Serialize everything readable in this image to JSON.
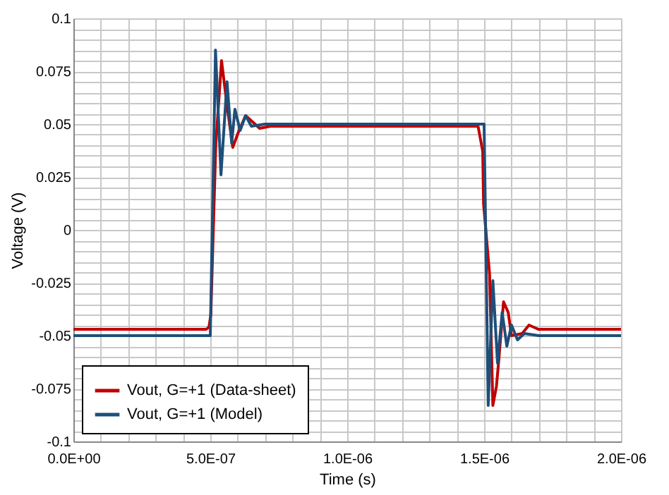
{
  "chart_data": {
    "type": "line",
    "xlabel": "Time  (s)",
    "ylabel": "Voltage  (V)",
    "xlim": [
      0,
      2e-06
    ],
    "ylim": [
      -0.1,
      0.1
    ],
    "xticks": [
      {
        "value": 0,
        "label": "0.0E+00"
      },
      {
        "value": 1e-07,
        "label": null
      },
      {
        "value": 2e-07,
        "label": null
      },
      {
        "value": 3e-07,
        "label": null
      },
      {
        "value": 4e-07,
        "label": null
      },
      {
        "value": 5e-07,
        "label": "5.0E-07"
      },
      {
        "value": 6e-07,
        "label": null
      },
      {
        "value": 7e-07,
        "label": null
      },
      {
        "value": 8e-07,
        "label": null
      },
      {
        "value": 9e-07,
        "label": null
      },
      {
        "value": 1e-06,
        "label": "1.0E-06"
      },
      {
        "value": 1.1e-06,
        "label": null
      },
      {
        "value": 1.2e-06,
        "label": null
      },
      {
        "value": 1.3e-06,
        "label": null
      },
      {
        "value": 1.4e-06,
        "label": null
      },
      {
        "value": 1.5e-06,
        "label": "1.5E-06"
      },
      {
        "value": 1.6e-06,
        "label": null
      },
      {
        "value": 1.7e-06,
        "label": null
      },
      {
        "value": 1.8e-06,
        "label": null
      },
      {
        "value": 1.9e-06,
        "label": null
      },
      {
        "value": 2e-06,
        "label": "2.0E-06"
      }
    ],
    "yticks": [
      -0.1,
      {
        "value": -0.095,
        "label": null
      },
      {
        "value": -0.09,
        "label": null
      },
      {
        "value": -0.085,
        "label": null
      },
      {
        "value": -0.08,
        "label": null
      },
      -0.075,
      {
        "value": -0.07,
        "label": null
      },
      {
        "value": -0.065,
        "label": null
      },
      {
        "value": -0.06,
        "label": null
      },
      {
        "value": -0.055,
        "label": null
      },
      -0.05,
      {
        "value": -0.045,
        "label": null
      },
      {
        "value": -0.04,
        "label": null
      },
      {
        "value": -0.035,
        "label": null
      },
      {
        "value": -0.03,
        "label": null
      },
      -0.025,
      {
        "value": -0.02,
        "label": null
      },
      {
        "value": -0.015,
        "label": null
      },
      {
        "value": -0.01,
        "label": null
      },
      {
        "value": -0.005,
        "label": null
      },
      0,
      {
        "value": 0.005,
        "label": null
      },
      {
        "value": 0.01,
        "label": null
      },
      {
        "value": 0.015,
        "label": null
      },
      {
        "value": 0.02,
        "label": null
      },
      0.025,
      {
        "value": 0.03,
        "label": null
      },
      {
        "value": 0.035,
        "label": null
      },
      {
        "value": 0.04,
        "label": null
      },
      {
        "value": 0.045,
        "label": null
      },
      0.05,
      {
        "value": 0.055,
        "label": null
      },
      {
        "value": 0.06,
        "label": null
      },
      {
        "value": 0.065,
        "label": null
      },
      {
        "value": 0.07,
        "label": null
      },
      0.075,
      {
        "value": 0.08,
        "label": null
      },
      {
        "value": 0.085,
        "label": null
      },
      {
        "value": 0.09,
        "label": null
      },
      {
        "value": 0.095,
        "label": null
      },
      0.1
    ],
    "grid": true,
    "legend": "bottom left",
    "marker": "none",
    "line_style": "solid",
    "series": [
      {
        "name": "Vout, G=+1 (Data-sheet)",
        "color": "#c00000",
        "x": [
          0,
          4.85e-07,
          4.95e-07,
          5.02e-07,
          5.2e-07,
          5.41e-07,
          5.6e-07,
          5.82e-07,
          6.05e-07,
          6.29e-07,
          6.55e-07,
          6.8e-07,
          7.2e-07,
          1e-06,
          1.478e-06,
          1.495e-06,
          1.498e-06,
          1.52e-06,
          1.532e-06,
          1.545e-06,
          1.554e-06,
          1.571e-06,
          1.588e-06,
          1.6e-06,
          1.639e-06,
          1.664e-06,
          1.698e-06,
          2e-06
        ],
        "values": [
          -0.047,
          -0.047,
          -0.046,
          -0.04,
          0.04,
          0.08,
          0.06,
          0.039,
          0.047,
          0.054,
          0.051,
          0.048,
          0.049,
          0.049,
          0.049,
          0.037,
          0.0125,
          -0.021,
          -0.083,
          -0.074,
          -0.061,
          -0.034,
          -0.039,
          -0.05,
          -0.049,
          -0.045,
          -0.047,
          -0.047
        ]
      },
      {
        "name": "Vout, G=+1 (Model)",
        "color": "#1f4e79",
        "x": [
          0,
          5e-07,
          5.19e-07,
          5.39e-07,
          5.61e-07,
          5.78e-07,
          5.9e-07,
          6.09e-07,
          6.29e-07,
          6.5e-07,
          7e-07,
          1e-06,
          1.5e-06,
          1.515e-06,
          1.532e-06,
          1.549e-06,
          1.566e-06,
          1.583e-06,
          1.6e-06,
          1.622e-06,
          1.647e-06,
          1.7e-06,
          2e-06
        ],
        "values": [
          -0.05,
          -0.05,
          0.085,
          0.026,
          0.07,
          0.041,
          0.057,
          0.047,
          0.054,
          0.049,
          0.05,
          0.05,
          0.05,
          -0.083,
          -0.024,
          -0.063,
          -0.039,
          -0.055,
          -0.045,
          -0.052,
          -0.049,
          -0.05,
          -0.05
        ]
      }
    ]
  }
}
